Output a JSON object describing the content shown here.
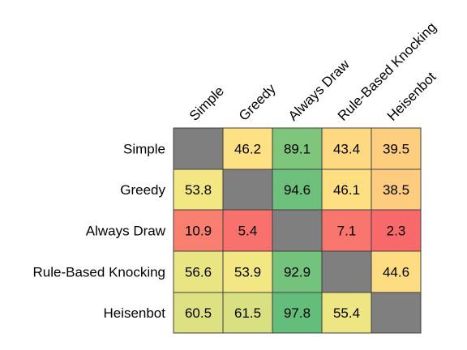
{
  "chart_data": {
    "type": "heatmap",
    "title": "",
    "rows": [
      "Simple",
      "Greedy",
      "Always Draw",
      "Rule-Based Knocking",
      "Heisenbot"
    ],
    "columns": [
      "Simple",
      "Greedy",
      "Always Draw",
      "Rule-Based Knocking",
      "Heisenbot"
    ],
    "values": [
      [
        null,
        46.2,
        89.1,
        43.4,
        39.5
      ],
      [
        53.8,
        null,
        94.6,
        46.1,
        38.5
      ],
      [
        10.9,
        5.4,
        null,
        7.1,
        2.3
      ],
      [
        56.6,
        53.9,
        92.9,
        null,
        44.6
      ],
      [
        60.5,
        61.5,
        97.8,
        55.4,
        null
      ]
    ],
    "value_labels": [
      [
        "",
        "46.2",
        "89.1",
        "43.4",
        "39.5"
      ],
      [
        "53.8",
        "",
        "94.6",
        "46.1",
        "38.5"
      ],
      [
        "10.9",
        "5.4",
        "",
        "7.1",
        "2.3"
      ],
      [
        "56.6",
        "53.9",
        "92.9",
        "",
        "44.6"
      ],
      [
        "60.5",
        "61.5",
        "97.8",
        "55.4",
        ""
      ]
    ],
    "colors": {
      "empty_cell": "#7f7f7f",
      "low": "#f8696b",
      "mid": "#ffeb84",
      "high": "#63be7b",
      "grid": "#3f3f3f"
    }
  }
}
